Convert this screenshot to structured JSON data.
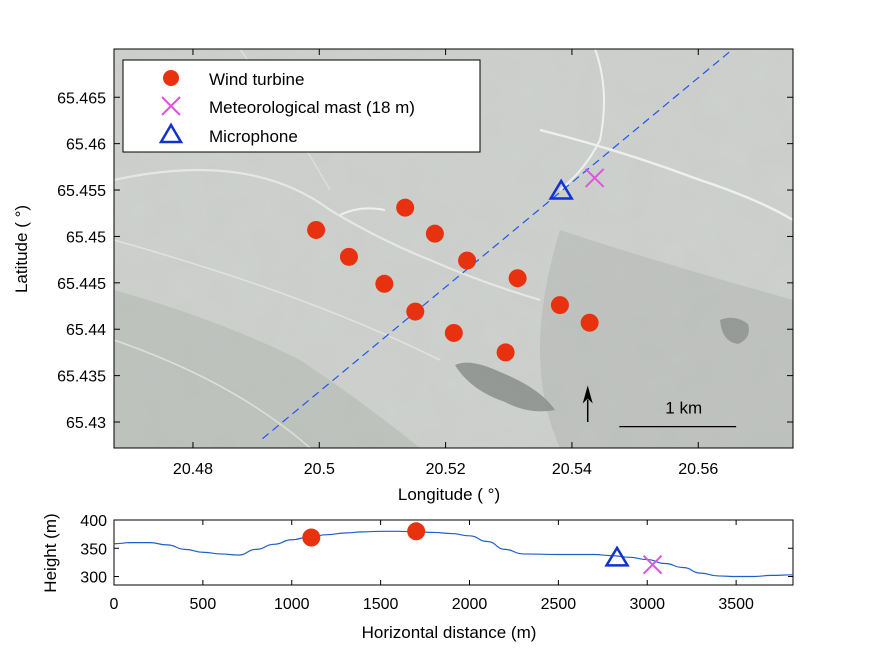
{
  "chart_data": [
    {
      "type": "scatter",
      "xlabel": "Longitude ( °)",
      "ylabel": "Latitude ( °)",
      "xlim": [
        20.4675,
        20.575
      ],
      "ylim": [
        65.4272,
        65.4702
      ],
      "xticks": [
        "20.48",
        "20.5",
        "20.52",
        "20.54",
        "20.56"
      ],
      "xtick_values": [
        20.48,
        20.5,
        20.52,
        20.54,
        20.56
      ],
      "yticks": [
        "65.43",
        "65.435",
        "65.44",
        "65.445",
        "65.45",
        "65.455",
        "65.46",
        "65.465"
      ],
      "ytick_values": [
        65.43,
        65.435,
        65.44,
        65.445,
        65.45,
        65.455,
        65.46,
        65.465
      ],
      "background": "aerial photograph",
      "legend_position": "top-left",
      "series": [
        {
          "name": "Wind turbine",
          "marker": "filled-circle",
          "color": "#e8320f",
          "points": [
            {
              "x": 20.4995,
              "y": 65.4507
            },
            {
              "x": 20.5047,
              "y": 65.4478
            },
            {
              "x": 20.5103,
              "y": 65.4449
            },
            {
              "x": 20.5136,
              "y": 65.4531
            },
            {
              "x": 20.5152,
              "y": 65.4419
            },
            {
              "x": 20.5183,
              "y": 65.4503
            },
            {
              "x": 20.5213,
              "y": 65.4396
            },
            {
              "x": 20.5234,
              "y": 65.4474
            },
            {
              "x": 20.5295,
              "y": 65.4375
            },
            {
              "x": 20.5314,
              "y": 65.4455
            },
            {
              "x": 20.5381,
              "y": 65.4426
            },
            {
              "x": 20.5428,
              "y": 65.4407
            }
          ]
        },
        {
          "name": "Meteorological mast (18 m)",
          "marker": "x",
          "color": "#dd55dd",
          "points": [
            {
              "x": 20.5436,
              "y": 65.4563
            }
          ]
        },
        {
          "name": "Microphone",
          "marker": "triangle",
          "color": "#1133cc",
          "points": [
            {
              "x": 20.5383,
              "y": 65.4549
            }
          ]
        }
      ],
      "transect_line": {
        "color": "#2255ee",
        "style": "dashed",
        "points": [
          {
            "x": 20.491,
            "y": 65.4282
          },
          {
            "x": 20.5655,
            "y": 65.4702
          }
        ]
      },
      "north_arrow": {
        "x": 20.5425,
        "y_from": 65.43,
        "y_to": 65.4335
      },
      "scale_bar": {
        "label": "1 km",
        "x_from": 20.5475,
        "x_to": 20.566,
        "y": 65.4295
      }
    },
    {
      "type": "line",
      "xlabel": "Horizontal distance (m)",
      "ylabel": "Height (m)",
      "xlim": [
        0,
        3820
      ],
      "ylim": [
        285,
        400
      ],
      "xticks": [
        "0",
        "500",
        "1000",
        "1500",
        "2000",
        "2500",
        "3000",
        "3500"
      ],
      "xtick_values": [
        0,
        500,
        1000,
        1500,
        2000,
        2500,
        3000,
        3500
      ],
      "yticks": [
        "300",
        "350",
        "400"
      ],
      "ytick_values": [
        300,
        350,
        400
      ],
      "series": [
        {
          "name": "terrain",
          "color": "#1f5fc8",
          "points": [
            {
              "x": 0,
              "y": 358
            },
            {
              "x": 100,
              "y": 360
            },
            {
              "x": 200,
              "y": 360
            },
            {
              "x": 300,
              "y": 356
            },
            {
              "x": 400,
              "y": 348
            },
            {
              "x": 500,
              "y": 343
            },
            {
              "x": 600,
              "y": 340
            },
            {
              "x": 700,
              "y": 338
            },
            {
              "x": 800,
              "y": 348
            },
            {
              "x": 900,
              "y": 357
            },
            {
              "x": 1000,
              "y": 365
            },
            {
              "x": 1100,
              "y": 370
            },
            {
              "x": 1200,
              "y": 374
            },
            {
              "x": 1300,
              "y": 377
            },
            {
              "x": 1400,
              "y": 379
            },
            {
              "x": 1500,
              "y": 380
            },
            {
              "x": 1600,
              "y": 380
            },
            {
              "x": 1700,
              "y": 379
            },
            {
              "x": 1800,
              "y": 378
            },
            {
              "x": 1900,
              "y": 376
            },
            {
              "x": 2000,
              "y": 372
            },
            {
              "x": 2100,
              "y": 362
            },
            {
              "x": 2200,
              "y": 348
            },
            {
              "x": 2300,
              "y": 340
            },
            {
              "x": 2500,
              "y": 339
            },
            {
              "x": 2700,
              "y": 339
            },
            {
              "x": 2800,
              "y": 337
            },
            {
              "x": 2900,
              "y": 334
            },
            {
              "x": 3000,
              "y": 330
            },
            {
              "x": 3100,
              "y": 323
            },
            {
              "x": 3200,
              "y": 316
            },
            {
              "x": 3300,
              "y": 306
            },
            {
              "x": 3400,
              "y": 301
            },
            {
              "x": 3500,
              "y": 300
            },
            {
              "x": 3600,
              "y": 300
            },
            {
              "x": 3700,
              "y": 302
            },
            {
              "x": 3820,
              "y": 303
            }
          ]
        }
      ],
      "markers": [
        {
          "series": "Wind turbine",
          "marker": "filled-circle",
          "color": "#e8320f",
          "x": 1110,
          "y": 369
        },
        {
          "series": "Wind turbine",
          "marker": "filled-circle",
          "color": "#e8320f",
          "x": 1700,
          "y": 380
        },
        {
          "series": "Microphone",
          "marker": "triangle",
          "color": "#1133cc",
          "x": 2830,
          "y": 333
        },
        {
          "series": "Meteorological mast (18 m)",
          "marker": "x",
          "color": "#dd55dd",
          "x": 3030,
          "y": 321
        }
      ]
    }
  ]
}
